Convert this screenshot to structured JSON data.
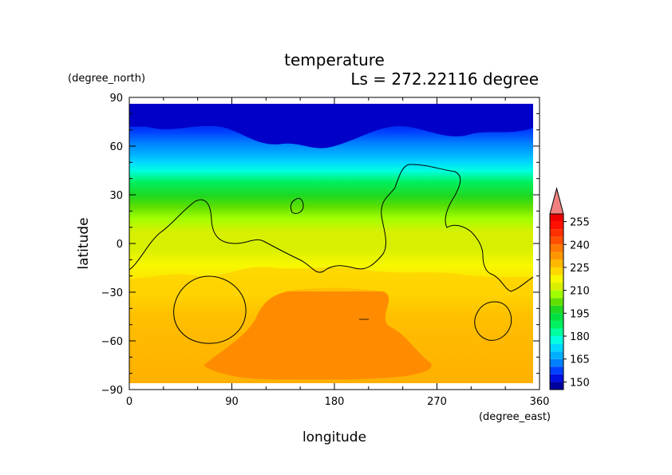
{
  "chart_data": {
    "type": "heatmap",
    "title": "temperature",
    "subtitle": "Ls = 272.22116 degree",
    "xlabel": "longitude",
    "ylabel": "latitude",
    "x_units": "(degree_east)",
    "y_units": "(degree_north)",
    "xlim": [
      0,
      360
    ],
    "ylim": [
      -90,
      90
    ],
    "x_ticks": [
      "0",
      "90",
      "180",
      "270",
      "360"
    ],
    "y_ticks": [
      "90",
      "60",
      "30",
      "0",
      "−30",
      "−60",
      "−90"
    ],
    "colorbar": {
      "labels": [
        "150",
        "165",
        "180",
        "195",
        "210",
        "225",
        "240",
        "255"
      ],
      "levels": [
        145,
        150,
        155,
        160,
        165,
        170,
        175,
        180,
        185,
        190,
        195,
        200,
        205,
        210,
        215,
        220,
        225,
        230,
        235,
        240,
        245,
        250,
        255,
        260
      ],
      "colors": [
        "#0000a0",
        "#0010e0",
        "#0040ff",
        "#0080ff",
        "#00b0ff",
        "#00d8ff",
        "#00ffe0",
        "#00ffa0",
        "#00f060",
        "#00e040",
        "#20d820",
        "#60e000",
        "#a0ff00",
        "#d8f000",
        "#f8f800",
        "#ffd800",
        "#ffb800",
        "#ff9800",
        "#ff7800",
        "#ff5000",
        "#ff3000",
        "#ff1000",
        "#f00000"
      ],
      "extend_color": "#f08080"
    }
  }
}
